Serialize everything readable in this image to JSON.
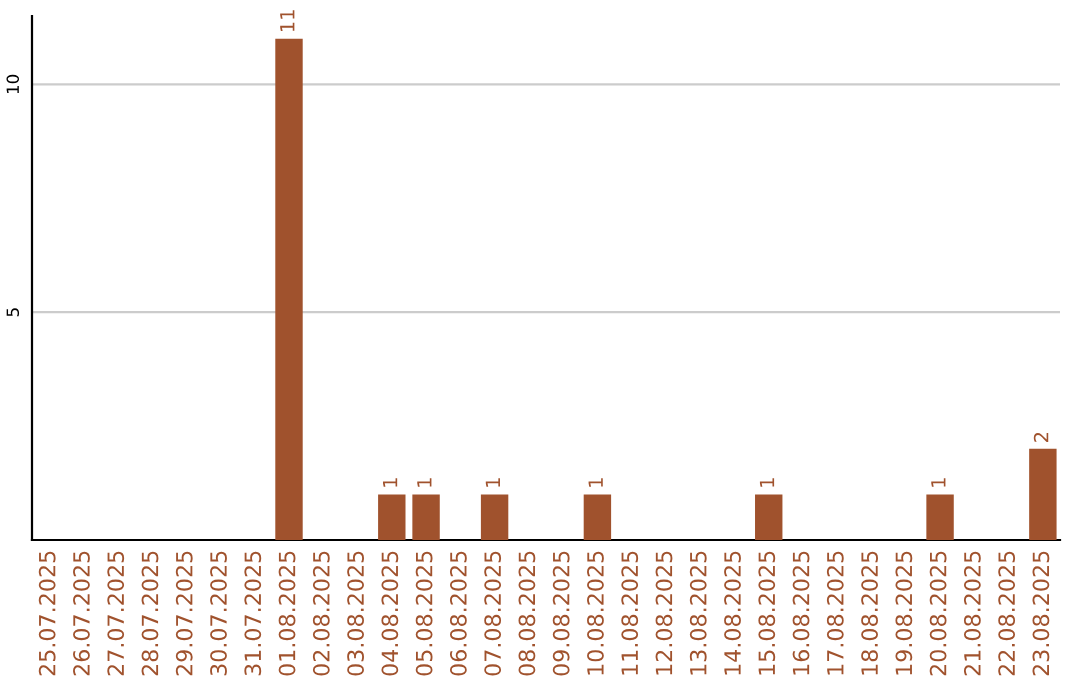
{
  "chart_data": {
    "type": "bar",
    "categories": [
      "25.07.2025",
      "26.07.2025",
      "27.07.2025",
      "28.07.2025",
      "29.07.2025",
      "30.07.2025",
      "31.07.2025",
      "01.08.2025",
      "02.08.2025",
      "03.08.2025",
      "04.08.2025",
      "05.08.2025",
      "06.08.2025",
      "07.08.2025",
      "08.08.2025",
      "09.08.2025",
      "10.08.2025",
      "11.08.2025",
      "12.08.2025",
      "13.08.2025",
      "14.08.2025",
      "15.08.2025",
      "16.08.2025",
      "17.08.2025",
      "18.08.2025",
      "19.08.2025",
      "20.08.2025",
      "21.08.2025",
      "22.08.2025",
      "23.08.2025"
    ],
    "values": [
      0,
      0,
      0,
      0,
      0,
      0,
      0,
      11,
      0,
      0,
      1,
      1,
      0,
      1,
      0,
      0,
      1,
      0,
      0,
      0,
      0,
      1,
      0,
      0,
      0,
      0,
      1,
      0,
      0,
      2
    ],
    "value_labels": [
      null,
      null,
      null,
      null,
      null,
      null,
      null,
      "11",
      null,
      null,
      "1",
      "1",
      null,
      "1",
      null,
      null,
      "1",
      null,
      null,
      null,
      null,
      "1",
      null,
      null,
      null,
      null,
      "1",
      null,
      null,
      "2"
    ],
    "color": "#a0522d",
    "ylim": [
      0,
      11.5
    ],
    "yticks": [
      5,
      10
    ],
    "grid": "y"
  }
}
